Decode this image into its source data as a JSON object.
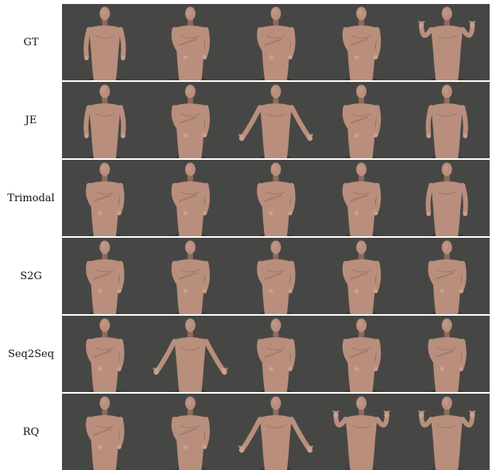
{
  "figure": {
    "rows": [
      {
        "label": "GT",
        "poses": [
          "down",
          "cross",
          "cross",
          "cross",
          "raised"
        ]
      },
      {
        "label": "JE",
        "poses": [
          "down",
          "cross",
          "spread",
          "cross",
          "down"
        ]
      },
      {
        "label": "Trimodal",
        "poses": [
          "cross",
          "cross",
          "cross",
          "cross",
          "down"
        ]
      },
      {
        "label": "S2G",
        "poses": [
          "cross",
          "cross",
          "cross",
          "cross",
          "cross"
        ]
      },
      {
        "label": "Seq2Seq",
        "poses": [
          "cross",
          "spread",
          "cross",
          "cross",
          "cross"
        ]
      },
      {
        "label": "RQ",
        "poses": [
          "cross",
          "cross",
          "spread",
          "raised",
          "raised"
        ]
      }
    ],
    "colors": {
      "background": "#464744",
      "skin": "#b98e7c",
      "skin_shadow": "#8f6a5c",
      "skin_light": "#caa090",
      "label_text": "#111111"
    }
  }
}
